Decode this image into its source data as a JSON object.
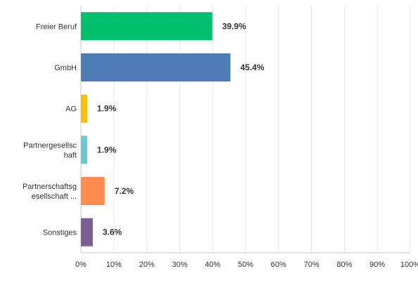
{
  "chart_data": {
    "type": "bar",
    "orientation": "horizontal",
    "categories": [
      [
        "Freier Beruf"
      ],
      [
        "GmbH"
      ],
      [
        "AG"
      ],
      [
        "Partnergesellsc",
        "haft"
      ],
      [
        "Partnerschaftsg",
        "esellschaft ..."
      ],
      [
        "Sonstiges"
      ]
    ],
    "values": [
      39.9,
      45.4,
      1.9,
      1.9,
      7.2,
      3.6
    ],
    "value_labels": [
      "39.9%",
      "45.4%",
      "1.9%",
      "1.9%",
      "7.2%",
      "3.6%"
    ],
    "colors": [
      "#00bf6f",
      "#507cb6",
      "#f9be00",
      "#6bc8cd",
      "#ff8b4f",
      "#7d5e90"
    ],
    "xlim": [
      0,
      100
    ],
    "xticks": [
      0,
      10,
      20,
      30,
      40,
      50,
      60,
      70,
      80,
      90,
      100
    ],
    "xtick_labels": [
      "0%",
      "10%",
      "20%",
      "30%",
      "40%",
      "50%",
      "60%",
      "70%",
      "80%",
      "90%",
      "100%"
    ],
    "grid": true,
    "title": "",
    "xlabel": "",
    "ylabel": ""
  }
}
